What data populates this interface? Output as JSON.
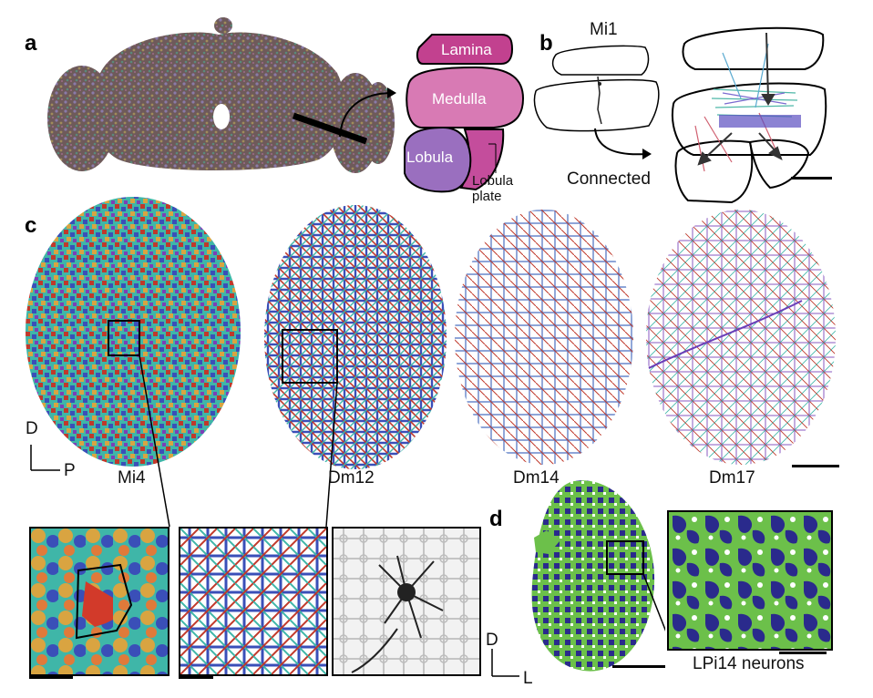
{
  "panels": {
    "a": "a",
    "b": "b",
    "c": "c",
    "d": "d"
  },
  "panel_a": {
    "regions": {
      "lamina": "Lamina",
      "medulla": "Medulla",
      "lobula": "Lobula",
      "lobula_plate": "Lobula plate"
    }
  },
  "panel_b": {
    "neuron_label": "Mi1",
    "arrow_label": "Connected"
  },
  "panel_c": {
    "orientation": {
      "dorsal": "D",
      "posterior": "P"
    },
    "cell_types": [
      "Mi4",
      "Dm12",
      "Dm14",
      "Dm17"
    ]
  },
  "panel_d": {
    "orientation": {
      "dorsal": "D",
      "lateral": "L"
    },
    "caption": "LPi14 neurons"
  },
  "colors": {
    "lamina": "#c2418f",
    "medulla": "#d87ab4",
    "lobula": "#9a6fbf",
    "lobula_plate": "#c44d9c",
    "neuron_green": "#6cc04a",
    "neuron_navy": "#2a2a8c",
    "mesh_red": "#c0392b",
    "mesh_blue": "#3a4fb8",
    "mesh_teal": "#3fb6a8"
  }
}
